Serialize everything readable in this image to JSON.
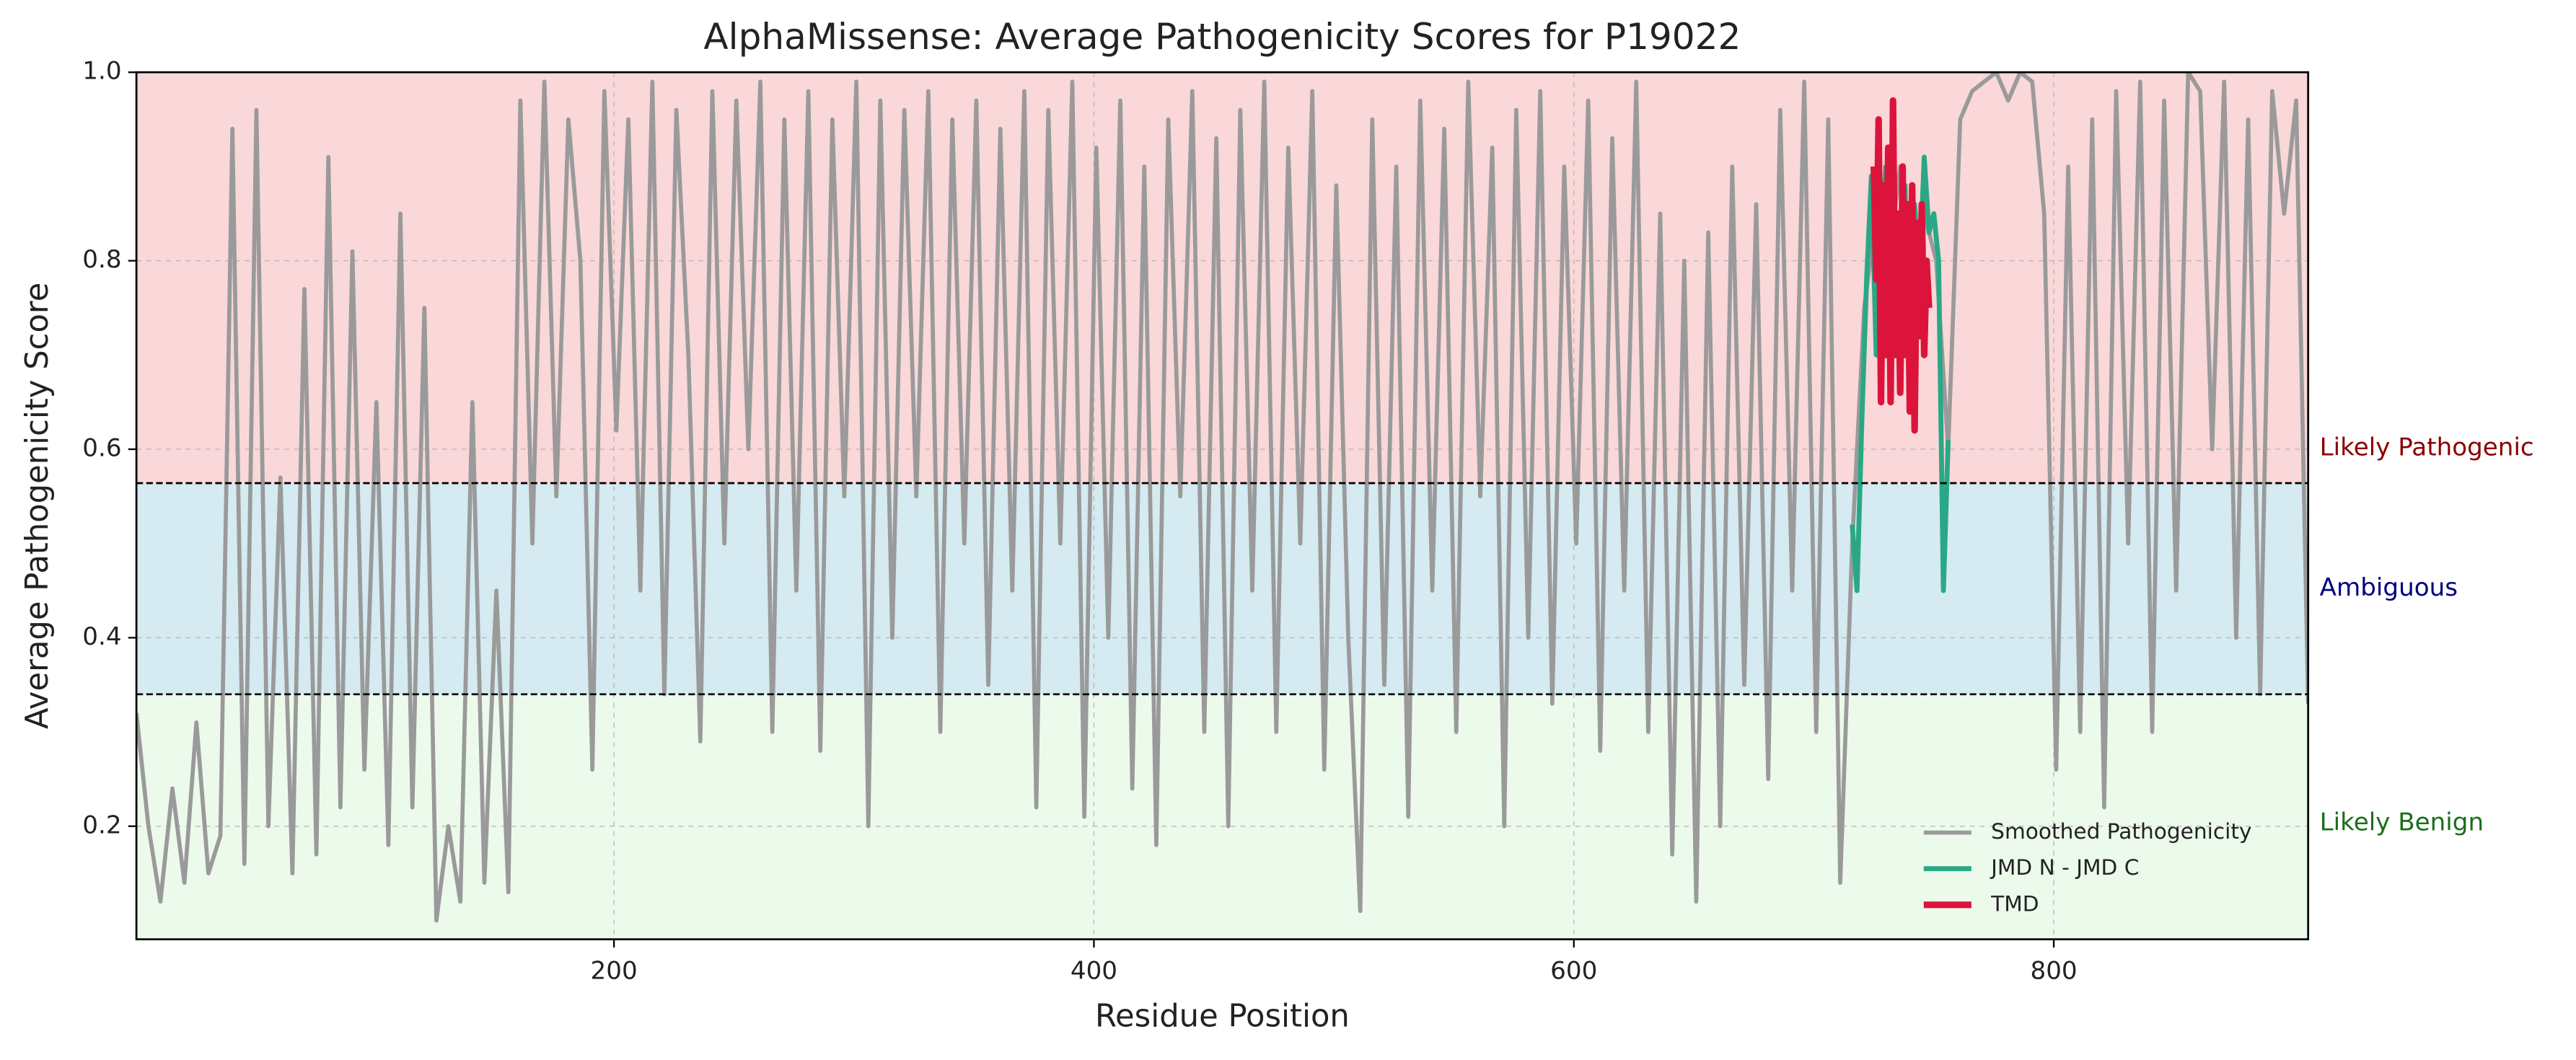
{
  "chart_data": {
    "type": "line",
    "title": "AlphaMissense: Average Pathogenicity Scores for P19022",
    "xlabel": "Residue Position",
    "ylabel": "Average Pathogenicity Score",
    "xlim": [
      1,
      906
    ],
    "ylim": [
      0.08,
      1.0
    ],
    "xticks": [
      200,
      400,
      600,
      800
    ],
    "yticks": [
      0.2,
      0.4,
      0.6,
      0.8,
      {
        "value": 1,
        "label": "1.0"
      }
    ],
    "grid": true,
    "legend": "lower right",
    "thresholds": [
      0.34,
      0.564
    ],
    "bands": [
      {
        "label": "Likely Benign",
        "color": "#ecfaec",
        "label_color": "#1a6e1a"
      },
      {
        "label": "Ambiguous",
        "color": "#d5eaf1",
        "label_color": "#00007f"
      },
      {
        "label": "Likely Pathogenic",
        "color": "#fad7d8",
        "label_color": "#8b0000"
      }
    ],
    "series": [
      {
        "name": "Smoothed Pathogenicity",
        "color": "#9a9a9a",
        "width": 2.5,
        "x": [
          1,
          6,
          11,
          16,
          21,
          26,
          31,
          36,
          41,
          46,
          51,
          56,
          61,
          66,
          71,
          76,
          81,
          86,
          91,
          96,
          101,
          106,
          111,
          116,
          121,
          126,
          131,
          136,
          141,
          146,
          151,
          156,
          161,
          166,
          171,
          176,
          181,
          186,
          191,
          196,
          201,
          206,
          211,
          216,
          221,
          226,
          231,
          236,
          241,
          246,
          251,
          256,
          261,
          266,
          271,
          276,
          281,
          286,
          291,
          296,
          301,
          306,
          311,
          316,
          321,
          326,
          331,
          336,
          341,
          346,
          351,
          356,
          361,
          366,
          371,
          376,
          381,
          386,
          391,
          396,
          401,
          406,
          411,
          416,
          421,
          426,
          431,
          436,
          441,
          446,
          451,
          456,
          461,
          466,
          471,
          476,
          481,
          486,
          491,
          496,
          501,
          506,
          511,
          516,
          521,
          526,
          531,
          536,
          541,
          546,
          551,
          556,
          561,
          566,
          571,
          576,
          581,
          586,
          591,
          596,
          601,
          606,
          611,
          616,
          621,
          626,
          631,
          636,
          641,
          646,
          651,
          656,
          661,
          666,
          671,
          676,
          681,
          686,
          691,
          696,
          701,
          706,
          711,
          716,
          721,
          726,
          731,
          736,
          741,
          746,
          751,
          756,
          761,
          766,
          771,
          776,
          781,
          786,
          791,
          796,
          801,
          806,
          811,
          816,
          821,
          826,
          831,
          836,
          841,
          846,
          851,
          856,
          861,
          866,
          871,
          876,
          881,
          886,
          891,
          896,
          901,
          906
        ],
        "values": [
          0.32,
          0.2,
          0.12,
          0.24,
          0.14,
          0.31,
          0.15,
          0.19,
          0.94,
          0.16,
          0.96,
          0.2,
          0.57,
          0.15,
          0.77,
          0.17,
          0.91,
          0.22,
          0.81,
          0.26,
          0.65,
          0.18,
          0.85,
          0.22,
          0.75,
          0.1,
          0.2,
          0.12,
          0.65,
          0.14,
          0.45,
          0.13,
          0.97,
          0.5,
          0.99,
          0.55,
          0.95,
          0.8,
          0.26,
          0.98,
          0.62,
          0.95,
          0.45,
          0.99,
          0.34,
          0.96,
          0.7,
          0.29,
          0.98,
          0.5,
          0.97,
          0.6,
          0.99,
          0.3,
          0.95,
          0.45,
          0.98,
          0.28,
          0.95,
          0.55,
          0.99,
          0.2,
          0.97,
          0.4,
          0.96,
          0.55,
          0.98,
          0.3,
          0.95,
          0.5,
          0.97,
          0.35,
          0.94,
          0.45,
          0.98,
          0.22,
          0.96,
          0.5,
          0.99,
          0.21,
          0.92,
          0.4,
          0.97,
          0.24,
          0.9,
          0.18,
          0.95,
          0.55,
          0.98,
          0.3,
          0.93,
          0.2,
          0.96,
          0.45,
          0.99,
          0.3,
          0.92,
          0.5,
          0.98,
          0.26,
          0.88,
          0.4,
          0.11,
          0.95,
          0.35,
          0.9,
          0.21,
          0.97,
          0.45,
          0.94,
          0.3,
          0.99,
          0.55,
          0.92,
          0.2,
          0.96,
          0.4,
          0.98,
          0.33,
          0.9,
          0.5,
          0.97,
          0.28,
          0.93,
          0.45,
          0.99,
          0.3,
          0.85,
          0.17,
          0.8,
          0.12,
          0.83,
          0.2,
          0.9,
          0.35,
          0.86,
          0.25,
          0.96,
          0.45,
          0.99,
          0.3,
          0.95,
          0.14,
          0.5,
          0.75,
          0.85,
          0.8,
          0.9,
          0.75,
          0.85,
          0.8,
          0.6,
          0.95,
          0.98,
          0.99,
          1.0,
          0.97,
          1.0,
          0.99,
          0.85,
          0.26,
          0.9,
          0.3,
          0.95,
          0.22,
          0.98,
          0.5,
          0.99,
          0.3,
          0.97,
          0.45,
          1.0,
          0.98,
          0.6,
          0.99,
          0.4,
          0.95,
          0.34,
          0.98,
          0.85,
          0.97,
          0.33
        ]
      },
      {
        "name": "JMD N - JMD C",
        "color": "#2aa886",
        "width": 3,
        "x": [
          716,
          718,
          720,
          722,
          724,
          726,
          728,
          730,
          732,
          734,
          736,
          738,
          740,
          742,
          744,
          746,
          748,
          750,
          752,
          754,
          756
        ],
        "values": [
          0.52,
          0.45,
          0.63,
          0.78,
          0.89,
          0.7,
          0.82,
          0.9,
          0.75,
          0.85,
          0.8,
          0.88,
          0.7,
          0.86,
          0.78,
          0.91,
          0.83,
          0.85,
          0.8,
          0.45,
          0.61
        ]
      },
      {
        "name": "TMD",
        "color": "#dc143c",
        "width": 4,
        "x": [
          725,
          726,
          727,
          728,
          729,
          730,
          731,
          732,
          733,
          734,
          735,
          736,
          737,
          738,
          739,
          740,
          741,
          742,
          743,
          744,
          745,
          746,
          747,
          748
        ],
        "values": [
          0.9,
          0.78,
          0.95,
          0.65,
          0.88,
          0.7,
          0.92,
          0.65,
          0.97,
          0.7,
          0.85,
          0.66,
          0.9,
          0.7,
          0.86,
          0.64,
          0.88,
          0.62,
          0.84,
          0.72,
          0.86,
          0.7,
          0.8,
          0.75
        ]
      }
    ]
  }
}
